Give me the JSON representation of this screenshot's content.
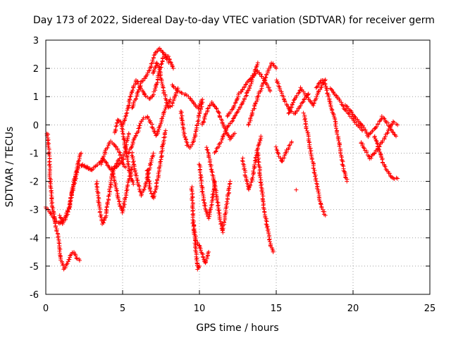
{
  "chart_data": {
    "type": "scatter",
    "title": "Day 173 of 2022, Sidereal Day-to-day VTEC variation (SDTVAR) for receiver germ",
    "xlabel": "GPS time / hours",
    "ylabel": "SDTVAR / TECUs",
    "xlim": [
      0,
      25
    ],
    "ylim": [
      -6,
      3
    ],
    "xticks": [
      0,
      5,
      10,
      15,
      20,
      25
    ],
    "yticks": [
      -6,
      -5,
      -4,
      -3,
      -2,
      -1,
      0,
      1,
      2,
      3
    ],
    "grid": true,
    "marker": "+",
    "colors": {
      "series": "#ff0000",
      "grid": "#a0a0a0",
      "axes": "#000000"
    },
    "series": [
      {
        "name": "satellite traces",
        "traces": [
          {
            "x": [
              0.1,
              0.2,
              0.3,
              0.4,
              0.6,
              0.8,
              1.0,
              1.2,
              1.4,
              1.6,
              1.8,
              2.0,
              2.2
            ],
            "y": [
              -0.3,
              -1.0,
              -2.0,
              -2.8,
              -3.4,
              -4.0,
              -4.8,
              -5.1,
              -4.9,
              -4.6,
              -4.5,
              -4.7,
              -4.8
            ]
          },
          {
            "x": [
              0.0,
              0.3,
              0.6,
              0.9,
              1.2,
              1.5,
              1.8,
              2.1,
              2.4,
              2.7,
              3.0
            ],
            "y": [
              -2.9,
              -3.1,
              -3.4,
              -3.5,
              -3.3,
              -3.0,
              -2.2,
              -1.5,
              -1.4,
              -1.5,
              -1.6
            ]
          },
          {
            "x": [
              0.9,
              1.1,
              1.3,
              1.5,
              1.7,
              1.9,
              2.1,
              2.3
            ],
            "y": [
              -3.2,
              -3.5,
              -3.3,
              -3.0,
              -2.4,
              -1.8,
              -1.3,
              -1.0
            ]
          },
          {
            "x": [
              2.2,
              2.6,
              3.0,
              3.4,
              3.7,
              4.0,
              4.3,
              4.6,
              4.9,
              5.2
            ],
            "y": [
              -1.4,
              -1.5,
              -1.6,
              -1.4,
              -1.2,
              -1.4,
              -1.6,
              -1.5,
              -1.3,
              -1.5
            ]
          },
          {
            "x": [
              3.3,
              3.5,
              3.7,
              3.9,
              4.1,
              4.3,
              4.5,
              4.8
            ],
            "y": [
              -2.0,
              -3.0,
              -3.5,
              -3.2,
              -2.5,
              -1.8,
              -1.5,
              -1.2
            ]
          },
          {
            "x": [
              3.6,
              3.9,
              4.2,
              4.5,
              4.8,
              5.0,
              5.2,
              5.4
            ],
            "y": [
              -1.4,
              -0.9,
              -0.6,
              -0.7,
              -1.0,
              -1.3,
              -0.8,
              -0.3
            ]
          },
          {
            "x": [
              4.3,
              4.6,
              4.8,
              5.0,
              5.2,
              5.4,
              5.6
            ],
            "y": [
              -1.5,
              -2.3,
              -2.8,
              -3.1,
              -2.5,
              -2.0,
              -1.5
            ]
          },
          {
            "x": [
              4.5,
              4.7,
              4.9,
              5.1,
              5.3,
              5.5,
              5.7
            ],
            "y": [
              -0.3,
              0.2,
              0.1,
              -0.5,
              -1.2,
              -1.8,
              -2.1
            ]
          },
          {
            "x": [
              5.0,
              5.3,
              5.6,
              5.9,
              6.2,
              6.5,
              6.8,
              7.1,
              7.4,
              7.7,
              8.0,
              8.3
            ],
            "y": [
              0.0,
              0.5,
              1.2,
              1.6,
              1.3,
              1.0,
              0.9,
              1.2,
              1.9,
              2.5,
              2.4,
              2.0
            ]
          },
          {
            "x": [
              5.6,
              5.9,
              6.2,
              6.5,
              6.8,
              7.1,
              7.4,
              7.7,
              8.0
            ],
            "y": [
              0.6,
              1.0,
              1.5,
              1.7,
              2.0,
              2.5,
              2.7,
              2.5,
              2.2
            ]
          },
          {
            "x": [
              5.4,
              5.7,
              6.0,
              6.3,
              6.6,
              6.9,
              7.2,
              7.5,
              7.8,
              8.1
            ],
            "y": [
              -1.0,
              -0.6,
              -0.2,
              0.2,
              0.3,
              0.0,
              -0.4,
              0.1,
              0.6,
              0.9
            ]
          },
          {
            "x": [
              5.6,
              5.8,
              6.0,
              6.2,
              6.4,
              6.6,
              6.8,
              7.0
            ],
            "y": [
              -1.0,
              -1.6,
              -2.1,
              -2.5,
              -2.3,
              -1.9,
              -1.4,
              -1.0
            ]
          },
          {
            "x": [
              6.6,
              6.8,
              7.0,
              7.2,
              7.4,
              7.6,
              7.8
            ],
            "y": [
              -1.6,
              -2.3,
              -2.6,
              -2.2,
              -1.5,
              -0.8,
              -0.2
            ]
          },
          {
            "x": [
              7.0,
              7.2,
              7.4,
              7.6,
              7.8,
              8.0,
              8.2,
              8.4,
              8.6
            ],
            "y": [
              1.8,
              2.2,
              2.0,
              1.4,
              0.9,
              0.6,
              0.7,
              1.0,
              1.3
            ]
          },
          {
            "x": [
              8.2,
              8.6,
              9.0,
              9.3,
              9.6,
              9.9,
              10.2
            ],
            "y": [
              1.4,
              1.2,
              1.1,
              1.0,
              0.8,
              0.6,
              0.9
            ]
          },
          {
            "x": [
              8.8,
              9.0,
              9.2,
              9.4,
              9.6,
              9.8,
              10.0,
              10.2
            ],
            "y": [
              0.5,
              -0.3,
              -0.7,
              -0.8,
              -0.6,
              -0.2,
              0.4,
              0.8
            ]
          },
          {
            "x": [
              9.5,
              9.6,
              9.7,
              9.8,
              9.9,
              10.0
            ],
            "y": [
              -2.2,
              -3.4,
              -4.0,
              -4.6,
              -5.1,
              -5.0
            ]
          },
          {
            "x": [
              9.6,
              9.8,
              10.0,
              10.2,
              10.4,
              10.6
            ],
            "y": [
              -3.5,
              -4.1,
              -4.3,
              -4.6,
              -4.9,
              -4.5
            ]
          },
          {
            "x": [
              10.0,
              10.2,
              10.4,
              10.6,
              10.8,
              11.0
            ],
            "y": [
              -1.4,
              -2.4,
              -3.0,
              -3.3,
              -2.8,
              -2.0
            ]
          },
          {
            "x": [
              10.2,
              10.5,
              10.8,
              11.1,
              11.4,
              11.7,
              12.0,
              12.3
            ],
            "y": [
              0.0,
              0.5,
              0.8,
              0.6,
              0.2,
              -0.2,
              -0.5,
              -0.3
            ]
          },
          {
            "x": [
              10.5,
              10.8,
              11.1,
              11.3,
              11.5,
              11.7,
              12.0
            ],
            "y": [
              -0.8,
              -1.6,
              -2.4,
              -3.2,
              -3.8,
              -3.1,
              -2.0
            ]
          },
          {
            "x": [
              11.0,
              11.4,
              11.8,
              12.2,
              12.6,
              13.0,
              13.4,
              13.8
            ],
            "y": [
              -1.0,
              -0.6,
              -0.1,
              0.2,
              0.6,
              1.0,
              1.5,
              2.2
            ]
          },
          {
            "x": [
              11.8,
              12.2,
              12.6,
              13.0,
              13.4,
              13.8,
              14.2,
              14.6
            ],
            "y": [
              0.3,
              0.6,
              1.1,
              1.4,
              1.7,
              1.9,
              1.6,
              1.2
            ]
          },
          {
            "x": [
              12.8,
              13.0,
              13.2,
              13.4,
              13.6,
              13.8,
              14.0
            ],
            "y": [
              -1.2,
              -1.8,
              -2.3,
              -2.0,
              -1.4,
              -0.8,
              -0.4
            ]
          },
          {
            "x": [
              13.8,
              14.0,
              14.2,
              14.4,
              14.6,
              14.8
            ],
            "y": [
              -1.0,
              -2.0,
              -2.9,
              -3.6,
              -4.2,
              -4.5
            ]
          },
          {
            "x": [
              13.2,
              13.5,
              13.8,
              14.1,
              14.4,
              14.7,
              15.0
            ],
            "y": [
              0.0,
              0.5,
              1.0,
              1.4,
              1.8,
              2.2,
              2.0
            ]
          },
          {
            "x": [
              15.0,
              15.3,
              15.6,
              15.9,
              16.2,
              16.5,
              16.8,
              17.1
            ],
            "y": [
              1.6,
              1.2,
              0.8,
              0.5,
              0.4,
              0.6,
              0.9,
              1.1
            ]
          },
          {
            "x": [
              15.0,
              15.2,
              15.4,
              15.6,
              15.8,
              16.0
            ],
            "y": [
              -0.8,
              -1.1,
              -1.3,
              -1.0,
              -0.8,
              -0.6
            ]
          },
          {
            "x": [
              15.8,
              16.2,
              16.6,
              17.0,
              17.4,
              17.8,
              18.2
            ],
            "y": [
              0.4,
              0.9,
              1.3,
              1.0,
              0.7,
              1.2,
              1.6
            ]
          },
          {
            "x": [
              16.8,
              17.0,
              17.2,
              17.4,
              17.6,
              17.8,
              18.0,
              18.2
            ],
            "y": [
              0.4,
              -0.2,
              -0.8,
              -1.4,
              -2.0,
              -2.6,
              -3.0,
              -3.2
            ]
          },
          {
            "x": [
              17.6,
              17.8,
              18.0,
              18.2,
              18.4,
              18.6,
              18.8,
              19.0,
              19.2,
              19.4,
              19.6
            ],
            "y": [
              1.3,
              1.5,
              1.6,
              1.4,
              1.0,
              0.6,
              0.2,
              -0.4,
              -1.0,
              -1.6,
              -2.0
            ]
          },
          {
            "x": [
              18.5,
              18.8,
              19.1,
              19.4,
              19.7,
              20.0,
              20.3,
              20.6
            ],
            "y": [
              1.3,
              1.1,
              0.9,
              0.6,
              0.4,
              0.2,
              0.0,
              -0.2
            ]
          },
          {
            "x": [
              19.5,
              19.8,
              20.1,
              20.4,
              20.7,
              21.0,
              21.3,
              21.6,
              21.9,
              22.2,
              22.5,
              22.8
            ],
            "y": [
              0.7,
              0.5,
              0.3,
              0.1,
              -0.1,
              -0.4,
              -0.2,
              0.0,
              0.3,
              0.1,
              -0.2,
              -0.4
            ]
          },
          {
            "x": [
              20.5,
              20.8,
              21.1,
              21.4,
              21.7,
              22.0,
              22.3,
              22.6,
              22.9
            ],
            "y": [
              -0.6,
              -0.9,
              -1.2,
              -1.0,
              -0.8,
              -0.5,
              -0.2,
              0.1,
              0.0
            ]
          },
          {
            "x": [
              21.4,
              21.7,
              22.0,
              22.3,
              22.6,
              22.9
            ],
            "y": [
              -0.4,
              -0.9,
              -1.4,
              -1.7,
              -1.9,
              -1.9
            ]
          },
          {
            "x": [
              16.3
            ],
            "y": [
              -2.3
            ]
          }
        ]
      }
    ]
  }
}
